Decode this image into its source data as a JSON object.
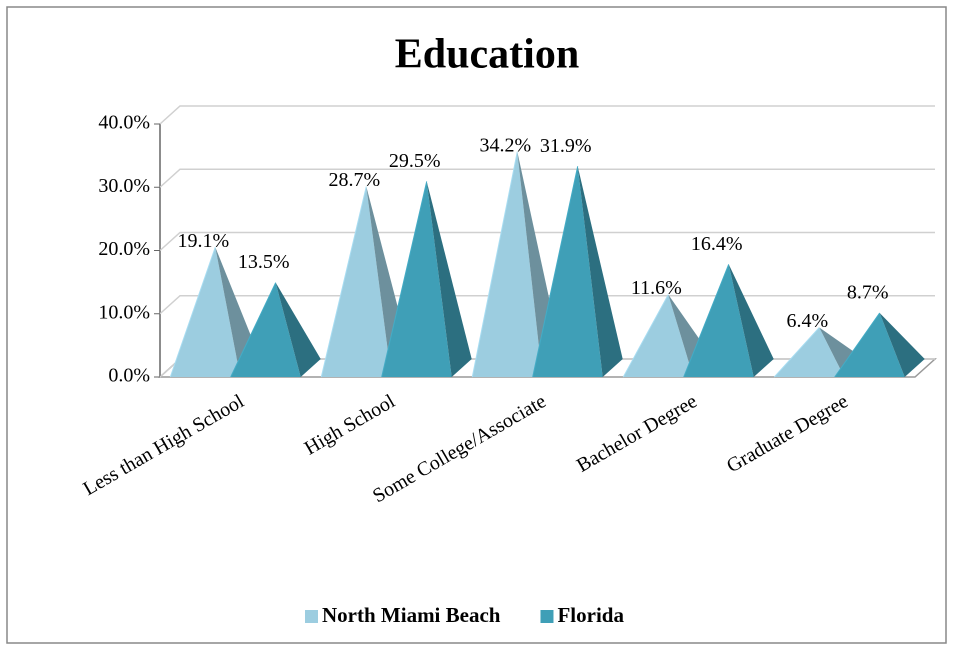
{
  "chart_data": {
    "type": "bar3d",
    "title": "Education",
    "categories": [
      "Less than High School",
      "High School",
      "Some College/Associate",
      "Bachelor Degree",
      "Graduate Degree"
    ],
    "series": [
      {
        "name": "North Miami Beach",
        "color": "#9ccde0",
        "values": [
          19.1,
          28.7,
          34.2,
          11.6,
          6.4
        ],
        "value_labels": [
          "19.1%",
          "28.7%",
          "34.2%",
          "11.6%",
          "6.4%"
        ]
      },
      {
        "name": "Florida",
        "color": "#3f9fb7",
        "values": [
          13.5,
          29.5,
          31.9,
          16.4,
          8.7
        ],
        "value_labels": [
          "13.5%",
          "29.5%",
          "31.9%",
          "16.4%",
          "8.7%"
        ]
      }
    ],
    "ylim": [
      0,
      40
    ],
    "yticks": [
      {
        "value": 0,
        "label": "0.0%"
      },
      {
        "value": 10,
        "label": "10.0%"
      },
      {
        "value": 20,
        "label": "20.0%"
      },
      {
        "value": 30,
        "label": "30.0%"
      },
      {
        "value": 40,
        "label": "40.0%"
      }
    ],
    "grid": true,
    "legend": "bottom"
  }
}
